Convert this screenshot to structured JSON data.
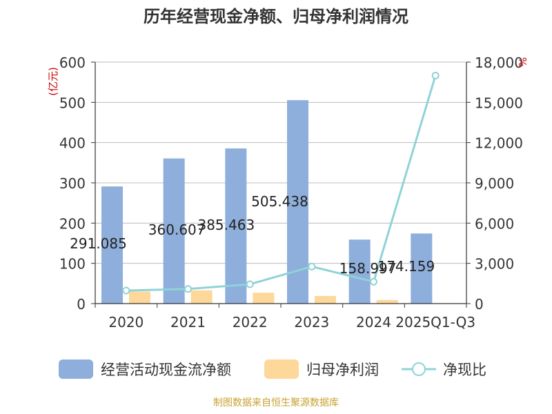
{
  "chart_data": {
    "type": "bar",
    "title": "历年经营现金净额、归母净利润情况",
    "categories": [
      "2020",
      "2021",
      "2022",
      "2023",
      "2024",
      "2025Q1-Q3"
    ],
    "y_left": {
      "label": "(亿元)",
      "min": 0,
      "max": 600,
      "ticks": [
        "0",
        "100",
        "200",
        "300",
        "400",
        "500",
        "600"
      ]
    },
    "y_right": {
      "label": "%",
      "min": 0,
      "max": 18000,
      "ticks": [
        "0",
        "3,000",
        "6,000",
        "9,000",
        "12,000",
        "15,000",
        "18,000"
      ]
    },
    "series": [
      {
        "name": "经营活动现金流净额",
        "type": "bar",
        "axis": "left",
        "color": "#8eaedb",
        "values": [
          291.085,
          360.607,
          385.463,
          505.438,
          158.997,
          174.159
        ],
        "labels": [
          "291.085",
          "360.607",
          "385.463",
          "505.438",
          "158.997",
          "174.159"
        ]
      },
      {
        "name": "归母净利润",
        "type": "bar",
        "axis": "left",
        "color": "#fdd89a",
        "values": [
          30,
          33,
          27,
          19,
          9,
          1
        ]
      },
      {
        "name": "净现比",
        "type": "line",
        "axis": "right",
        "color": "#8fd3d6",
        "values": [
          970,
          1090,
          1440,
          2760,
          1630,
          17000
        ]
      }
    ],
    "grid": true,
    "legend": "bottom"
  },
  "footer": {
    "source": "制图数据来自恒生聚源数据库"
  },
  "colors": {
    "title": "#333333",
    "axis": "#333333",
    "grid": "#bbbbbb",
    "unit": "#cc0000",
    "footer": "#c8a232"
  }
}
